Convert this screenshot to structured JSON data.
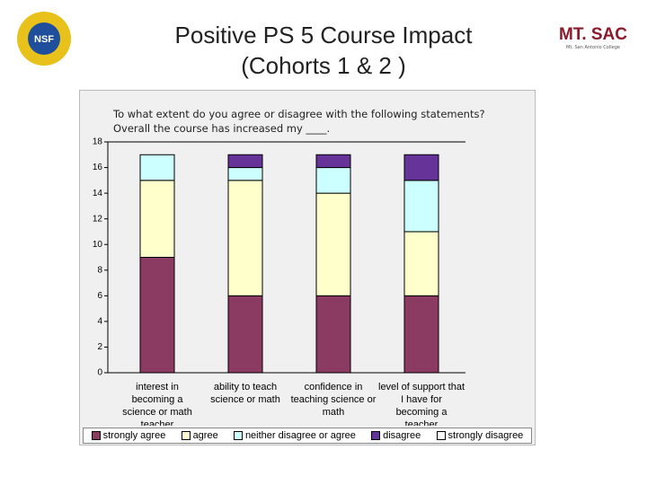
{
  "logos": {
    "left": "NSF",
    "right": "MT. SAC",
    "right_caption": "Mt. San Antonio College"
  },
  "chart_data": {
    "type": "bar",
    "stacked": true,
    "title": "Positive PS 5 Course Impact",
    "subtitle": "(Cohorts 1 & 2 )",
    "question": "To what extent do you agree or disagree with the following statements? Overall the course has increased my ____.",
    "categories": [
      "interest in becoming a science or math teacher",
      "ability to teach science or math",
      "confidence in teaching science or math",
      "level of support that I have for becoming a teacher"
    ],
    "series": [
      {
        "name": "strongly agree",
        "color": "#8b3a62",
        "values": [
          9,
          6,
          6,
          6
        ]
      },
      {
        "name": "agree",
        "color": "#ffffcc",
        "values": [
          6,
          9,
          8,
          5
        ]
      },
      {
        "name": "neither disagree or agree",
        "color": "#ccffff",
        "values": [
          2,
          1,
          2,
          4
        ]
      },
      {
        "name": "disagree",
        "color": "#663399",
        "values": [
          0,
          1,
          1,
          2
        ]
      },
      {
        "name": "strongly disagree",
        "color": "#ffffff",
        "values": [
          0,
          0,
          0,
          0
        ]
      }
    ],
    "ylim": [
      0,
      18
    ],
    "yticks": [
      0,
      2,
      4,
      6,
      8,
      10,
      12,
      14,
      16,
      18
    ],
    "grid": false,
    "legend": "bottom"
  }
}
